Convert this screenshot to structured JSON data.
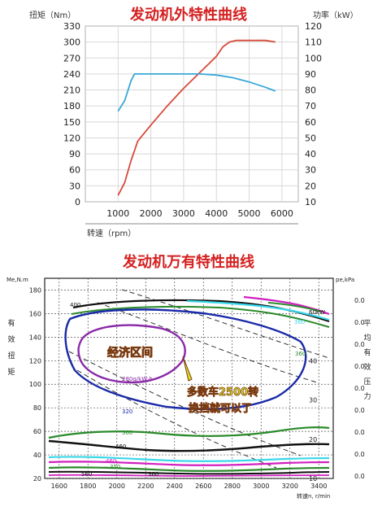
{
  "colors": {
    "torque": "#d84a3a",
    "power": "#38a8d8",
    "title": "#d42020",
    "callout": "#d8e020",
    "callout_stroke": "#7a3a10"
  },
  "top": {
    "title": "发动机外特性曲线",
    "left_axis_label": "扭矩（Nm）",
    "right_axis_label": "功率（kW）",
    "x_axis_label": "转速（rpm）"
  },
  "bottom": {
    "title": "发动机万有特性曲线",
    "left_top_label": "Me,N.m",
    "right_top_label": "pe,kPa",
    "left_side_label": "有效扭矩",
    "right_side_label": "平均有效压力",
    "x_axis_label": "转速n, r/min",
    "zone_label": "经济区间",
    "callout_line1": "多数车2500转",
    "callout_line2": "换挡就可以了",
    "right_col_values": [
      "0.0",
      "0.0",
      "0.0",
      "0.0",
      "0.0",
      "0.0",
      "0.0",
      "0.0",
      "0.0"
    ]
  },
  "chart_data": [
    {
      "type": "line",
      "title": "发动机外特性曲线",
      "xlabel": "转速（rpm）",
      "ylabel": "扭矩（Nm）",
      "y2label": "功率（kW）",
      "xlim": [
        0,
        6500
      ],
      "ylim": [
        0,
        330
      ],
      "y2lim": [
        10,
        120
      ],
      "x_ticks": [
        1000,
        2000,
        3000,
        4000,
        5000,
        6000
      ],
      "y_ticks": [
        0,
        30,
        60,
        90,
        120,
        150,
        180,
        210,
        240,
        270,
        300,
        330
      ],
      "y2_ticks": [
        10,
        20,
        30,
        40,
        50,
        60,
        70,
        80,
        90,
        100,
        110,
        120
      ],
      "series": [
        {
          "axis": "y2",
          "x": [
            1000,
            1200,
            1400,
            1600,
            2000,
            2500,
            3000,
            3500,
            4000,
            4200,
            4400,
            4600,
            5000,
            5500,
            5800
          ],
          "values": [
            14,
            22,
            36,
            48,
            58,
            70,
            81,
            91,
            101,
            107,
            110,
            111,
            111,
            111,
            110
          ]
        },
        {
          "axis": "y",
          "x": [
            1000,
            1200,
            1400,
            1500,
            2000,
            2500,
            3000,
            3500,
            4000,
            4500,
            5000,
            5500,
            5800
          ],
          "values": [
            170,
            190,
            228,
            240,
            240,
            240,
            240,
            240,
            238,
            233,
            225,
            215,
            208
          ]
        }
      ]
    },
    {
      "type": "contour",
      "title": "发动机万有特性曲线",
      "xlabel": "转速n, r/min",
      "ylabel": "Me,N.m",
      "y2label": "pe,kPa",
      "xlim": [
        1500,
        3500
      ],
      "ylim": [
        20,
        190
      ],
      "x_ticks": [
        1600,
        1800,
        2000,
        2200,
        2400,
        2600,
        2800,
        3000,
        3200,
        3400
      ],
      "y_ticks": [
        20,
        40,
        60,
        80,
        100,
        120,
        140,
        160,
        180
      ],
      "y2_ticks": [
        10,
        20,
        30,
        40
      ],
      "contour_labels": [
        "60kW",
        "400",
        "360",
        "280g/kW·h",
        "320",
        "360",
        "460",
        "460",
        "350",
        "360",
        "360",
        "560"
      ],
      "annotations": [
        "经济区间",
        "多数车2500转 换挡就可以了"
      ]
    }
  ]
}
